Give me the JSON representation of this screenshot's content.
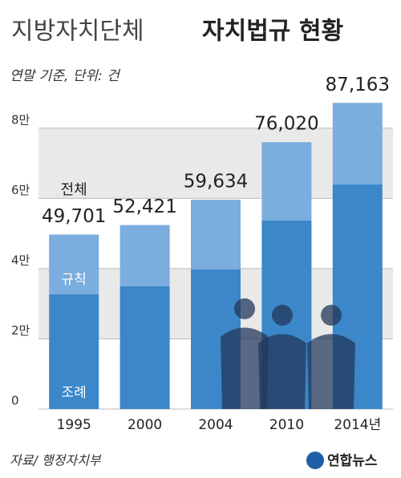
{
  "chart_data": {
    "type": "stacked-bar",
    "title": "지방자치단체",
    "title_bold": "자치법규 현황",
    "subtitle": "연말 기준, 단위: 건",
    "source": "자료/ 행정자치부",
    "logo": "연합뉴스",
    "categories": [
      "1995",
      "2000",
      "2004",
      "2010",
      "2014년"
    ],
    "series": [
      {
        "name": "조례",
        "color": "#3b87c9",
        "values": [
          32700,
          35000,
          39800,
          53700,
          64000
        ]
      },
      {
        "name": "규칙",
        "color": "#7badde",
        "values": [
          17000,
          17400,
          19800,
          22300,
          23200
        ]
      }
    ],
    "totals": {
      "name": "전체",
      "values": [
        49701,
        52421,
        59634,
        76020,
        87163
      ],
      "value_labels": [
        "49,701",
        "52,421",
        "59,634",
        "76,020",
        "87,163"
      ]
    },
    "ylim": [
      0,
      90000
    ],
    "yticks": [
      {
        "value": 0,
        "label": "0"
      },
      {
        "value": 20000,
        "label": "2만"
      },
      {
        "value": 40000,
        "label": "4만"
      },
      {
        "value": 60000,
        "label": "6만"
      },
      {
        "value": 80000,
        "label": "8만"
      }
    ],
    "grid": true
  }
}
